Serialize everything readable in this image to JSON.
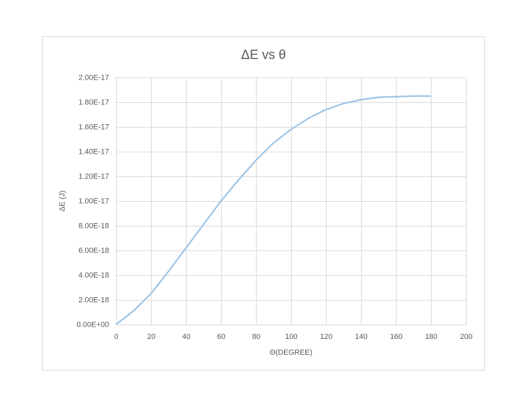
{
  "chart_data": {
    "type": "line",
    "title": "ΔE vs θ",
    "x_label": "Θ(DEGREE)",
    "y_label": "ΔE (J)",
    "x": [
      0,
      10,
      20,
      30,
      40,
      50,
      60,
      70,
      80,
      90,
      100,
      110,
      120,
      130,
      140,
      150,
      160,
      170,
      180
    ],
    "series": [
      {
        "name": "ΔE",
        "color": "#9dc3e6",
        "values": [
          0,
          1.1e-18,
          2.5e-18,
          4.3e-18,
          6.2e-18,
          8.1e-18,
          1e-17,
          1.17e-17,
          1.33e-17,
          1.47e-17,
          1.58e-17,
          1.67e-17,
          1.74e-17,
          1.79e-17,
          1.82e-17,
          1.84e-17,
          1.845e-17,
          1.85e-17,
          1.85e-17
        ]
      }
    ],
    "xlim": [
      0,
      200
    ],
    "xticks": [
      0,
      20,
      40,
      60,
      80,
      100,
      120,
      140,
      160,
      180,
      200
    ],
    "ylim": [
      0,
      2e-17
    ],
    "yticks": [
      {
        "value": 0,
        "label": "0.00E+00"
      },
      {
        "value": 2e-18,
        "label": "2.00E-18"
      },
      {
        "value": 4e-18,
        "label": "4.00E-18"
      },
      {
        "value": 6e-18,
        "label": "6.00E-18"
      },
      {
        "value": 8e-18,
        "label": "8.00E-18"
      },
      {
        "value": 1e-17,
        "label": "1.00E-17"
      },
      {
        "value": 1.2e-17,
        "label": "1.20E-17"
      },
      {
        "value": 1.4e-17,
        "label": "1.40E-17"
      },
      {
        "value": 1.6e-17,
        "label": "1.60E-17"
      },
      {
        "value": 1.8e-17,
        "label": "1.80E-17"
      },
      {
        "value": 2e-17,
        "label": "2.00E-17"
      }
    ],
    "grid": true
  }
}
